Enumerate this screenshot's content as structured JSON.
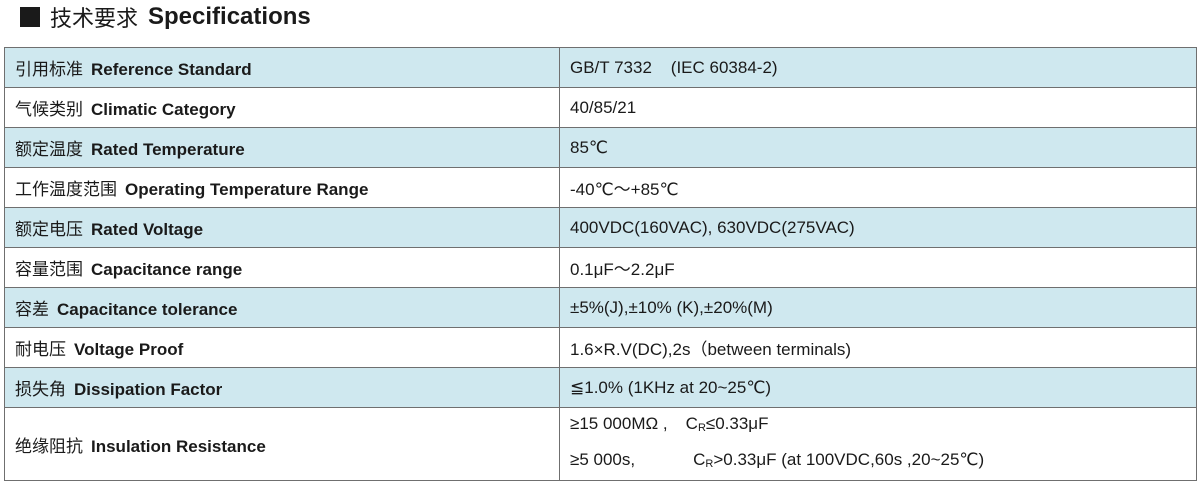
{
  "heading": {
    "zh": "技术要求",
    "en": "Specifications"
  },
  "rows": [
    {
      "zh": "引用标准",
      "en": "Reference Standard",
      "value": "GB/T 7332    (IEC 60384-2)"
    },
    {
      "zh": "气候类别",
      "en": "Climatic Category",
      "value": "40/85/21"
    },
    {
      "zh": "额定温度",
      "en": "Rated Temperature",
      "value": "85℃"
    },
    {
      "zh": "工作温度范围",
      "en": "Operating Temperature Range",
      "value": "-40℃～+85℃"
    },
    {
      "zh": "额定电压",
      "en": "Rated Voltage",
      "value": "400VDC(160VAC), 630VDC(275VAC)"
    },
    {
      "zh": "容量范围",
      "en": "Capacitance range",
      "value": "0.1μF～2.2μF"
    },
    {
      "zh": "容差",
      "en": "Capacitance tolerance",
      "value": "±5%(J),±10% (K),±20%(M)"
    },
    {
      "zh": "耐电压",
      "en": "Voltage Proof",
      "value": "1.6×R.V(DC),2s（between terminals)"
    },
    {
      "zh": "损失角",
      "en": "Dissipation Factor",
      "value": "≦1.0% (1KHz at 20~25℃)"
    }
  ],
  "insulation": {
    "zh": "绝缘阻抗",
    "en": "Insulation Resistance",
    "line1_a": "≥15 000MΩ ,",
    "line1_c": "C",
    "line1_sub": "R",
    "line1_b": "≤0.33μF",
    "line2_a": "≥5 000s,",
    "line2_c": "C",
    "line2_sub": "R",
    "line2_b": ">0.33μF (at 100VDC,60s ,20~25℃)"
  },
  "colors": {
    "shade": "#cfe8ef",
    "border": "#6f6f6f"
  }
}
